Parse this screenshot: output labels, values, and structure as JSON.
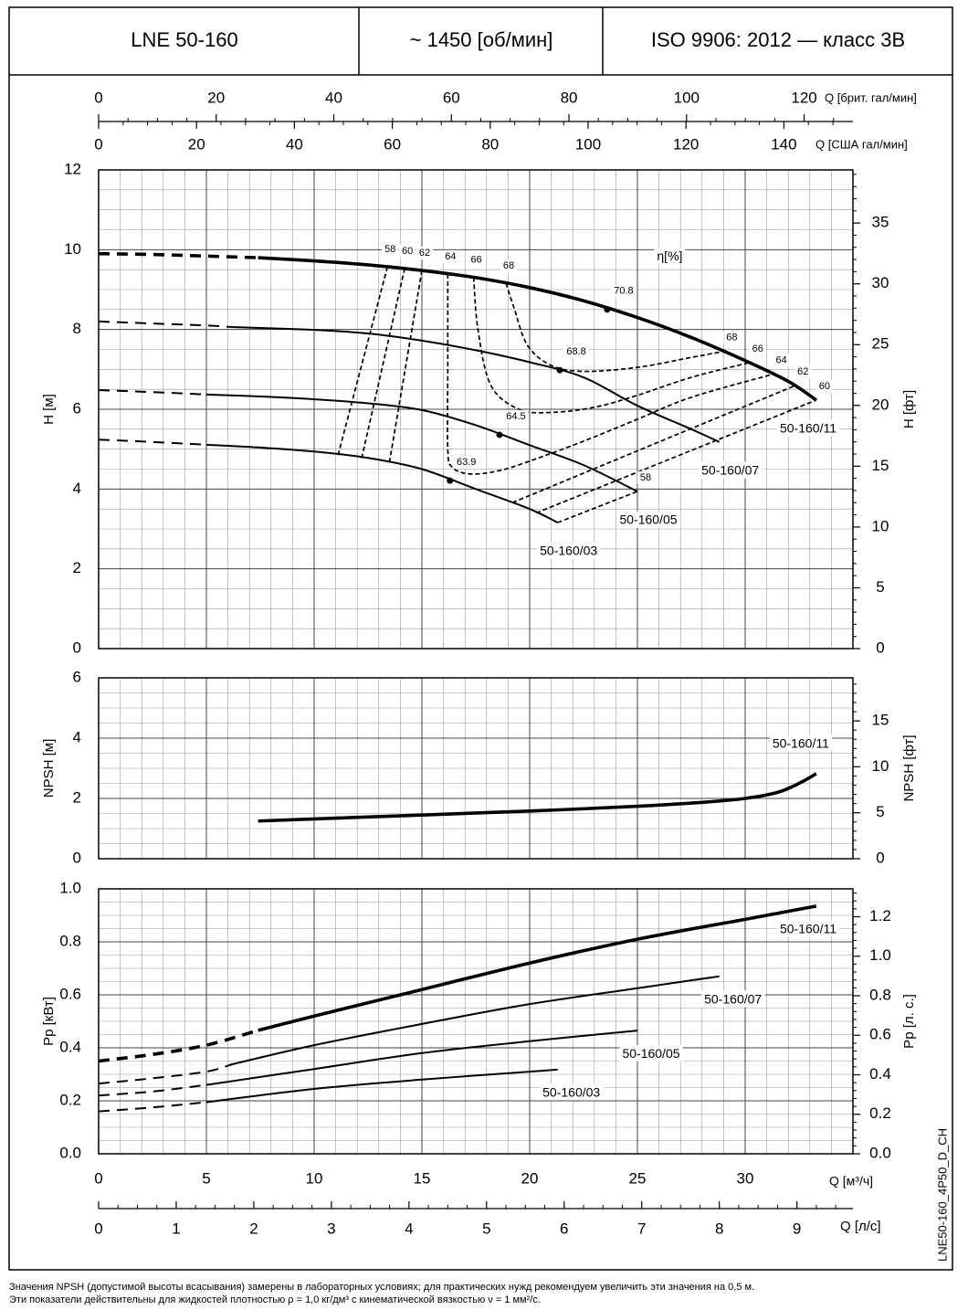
{
  "header": {
    "model": "LNE 50-160",
    "speed": "~ 1450 [об/мин]",
    "standard": "ISO 9906: 2012 — класс 3B"
  },
  "chart_data": [
    {
      "type": "line",
      "ylabel": "H [м]",
      "y2label": "H [фт]",
      "xlim": [
        0,
        35
      ],
      "xticks": [
        0,
        5,
        10,
        15,
        20,
        25,
        30
      ],
      "ylim": [
        0,
        12
      ],
      "yticks": [
        0,
        2,
        4,
        6,
        8,
        10,
        12
      ],
      "y2lim": [
        0,
        39.37
      ],
      "y2ticks": [
        0,
        5,
        10,
        15,
        20,
        25,
        30,
        35
      ],
      "grid": true,
      "x2axes": [
        {
          "label": "Q [брит. гал/мин]",
          "position": "top",
          "xlim": [
            0,
            128.3
          ],
          "xticks": [
            0,
            20,
            40,
            60,
            80,
            100,
            120
          ]
        },
        {
          "label": "Q [США гал/мин]",
          "position": "top",
          "xlim": [
            0,
            154.1
          ],
          "xticks": [
            0,
            20,
            40,
            60,
            80,
            100,
            120,
            140
          ]
        }
      ],
      "series": [
        {
          "name": "50-160/11",
          "color": "#000000",
          "emphasis": true,
          "dashed": {
            "x": [
              0,
              2.5,
              5,
              7.4
            ],
            "values": [
              9.9,
              9.88,
              9.84,
              9.8
            ]
          },
          "solid": {
            "x": [
              7.4,
              10,
              12.5,
              15,
              17.5,
              20,
              22.5,
              25,
              27.5,
              30,
              32,
              33.3
            ],
            "values": [
              9.8,
              9.72,
              9.62,
              9.48,
              9.3,
              9.05,
              8.72,
              8.3,
              7.8,
              7.22,
              6.7,
              6.23
            ]
          },
          "bep": {
            "x": 23.6,
            "value": 8.5,
            "eta": 70.8
          }
        },
        {
          "name": "50-160/07",
          "color": "#000000",
          "emphasis": false,
          "dashed": {
            "x": [
              0,
              2.5,
              5,
              6.2
            ],
            "values": [
              8.2,
              8.15,
              8.1,
              8.06
            ]
          },
          "solid": {
            "x": [
              6.2,
              10,
              12.5,
              15,
              17.5,
              20,
              22.5,
              25,
              27.5,
              28.8
            ],
            "values": [
              8.06,
              7.99,
              7.9,
              7.72,
              7.48,
              7.18,
              6.8,
              6.09,
              5.5,
              5.18
            ]
          },
          "bep": {
            "x": 21.4,
            "value": 6.98,
            "eta": 68.8
          }
        },
        {
          "name": "50-160/05",
          "color": "#000000",
          "emphasis": false,
          "dashed": {
            "x": [
              0,
              2.5,
              5
            ],
            "values": [
              6.48,
              6.43,
              6.37
            ]
          },
          "solid": {
            "x": [
              5,
              7.5,
              10,
              12.5,
              15,
              17.5,
              20,
              22.5,
              25
            ],
            "values": [
              6.37,
              6.32,
              6.25,
              6.15,
              5.98,
              5.6,
              5.1,
              4.6,
              3.94
            ]
          },
          "bep": {
            "x": 18.6,
            "value": 5.36,
            "eta": 64.5
          }
        },
        {
          "name": "50-160/03",
          "color": "#000000",
          "emphasis": false,
          "dashed": {
            "x": [
              0,
              2.5,
              5
            ],
            "values": [
              5.24,
              5.18,
              5.11
            ]
          },
          "solid": {
            "x": [
              5,
              7.5,
              10,
              12.5,
              15,
              17.5,
              20,
              21.3
            ],
            "values": [
              5.11,
              5.04,
              4.94,
              4.78,
              4.5,
              4.0,
              3.5,
              3.16
            ]
          },
          "bep": {
            "x": 16.3,
            "value": 4.21,
            "eta": 63.9
          }
        }
      ],
      "efficiency_label": "η[%]",
      "efficiency": [
        {
          "eta": 58,
          "x": [
            13.4,
            11.1,
            null,
            21.3,
            25
          ],
          "values": [
            9.57,
            4.83,
            null,
            3.16,
            3.94
          ]
        },
        {
          "eta": 60,
          "x": [
            14.2,
            12.2,
            null,
            20.3,
            33.3
          ],
          "values": [
            9.53,
            4.76,
            null,
            3.4,
            6.23
          ]
        },
        {
          "eta": 62,
          "x": [
            15.0,
            13.5,
            null,
            19.2,
            32.3
          ],
          "values": [
            9.48,
            4.69,
            null,
            3.66,
            6.59
          ]
        },
        {
          "eta": 64,
          "x": [
            16.2,
            16.2,
            16.2,
            16.4,
            17.2,
            18.5,
            20,
            22.5,
            25,
            27.5,
            31.3
          ],
          "values": [
            9.39,
            7.0,
            5.0,
            4.55,
            4.38,
            4.45,
            4.7,
            5.2,
            5.75,
            6.3,
            6.88
          ]
        },
        {
          "eta": 66,
          "x": [
            17.4,
            17.6,
            18.2,
            19.5,
            21,
            23,
            25,
            27.5,
            30.2
          ],
          "values": [
            9.31,
            8.0,
            6.6,
            6.0,
            5.92,
            6.05,
            6.35,
            6.8,
            7.17
          ]
        },
        {
          "eta": 68,
          "x": [
            18.9,
            19.3,
            19.9,
            21,
            22.5,
            25,
            27.5,
            29
          ],
          "values": [
            9.16,
            8.5,
            7.6,
            7.1,
            6.95,
            7.05,
            7.3,
            7.45
          ]
        }
      ]
    },
    {
      "type": "line",
      "ylabel": "NPSH [м]",
      "y2label": "NPSH [фт]",
      "xlim": [
        0,
        35
      ],
      "xticks": [
        0,
        5,
        10,
        15,
        20,
        25,
        30
      ],
      "ylim": [
        0,
        6
      ],
      "yticks": [
        0,
        2,
        4,
        6
      ],
      "y2lim": [
        0,
        19.685
      ],
      "y2ticks": [
        0,
        5,
        10,
        15
      ],
      "grid": true,
      "series": [
        {
          "name": "50-160/11",
          "color": "#000000",
          "emphasis": true,
          "solid": {
            "x": [
              7.4,
              10,
              15,
              20,
              25,
              28,
              30,
              31.5,
              32.5,
              33.3
            ],
            "values": [
              1.25,
              1.32,
              1.45,
              1.58,
              1.74,
              1.87,
              2.0,
              2.2,
              2.5,
              2.82
            ]
          }
        }
      ]
    },
    {
      "type": "line",
      "ylabel": "Pp [кВт]",
      "y2label": "Pp [л. с.]",
      "xlabel": "Q [м³/ч]",
      "xlim": [
        0,
        35
      ],
      "xticks": [
        0,
        5,
        10,
        15,
        20,
        25,
        30
      ],
      "ylim": [
        0,
        1
      ],
      "yticks": [
        {
          "value": 0,
          "label": "0.0"
        },
        0.2,
        0.4,
        0.6,
        0.8,
        {
          "value": 1,
          "label": "1.0"
        }
      ],
      "y2lim": [
        0,
        1.341
      ],
      "y2ticks": [
        {
          "value": 0,
          "label": "0.0"
        },
        0.2,
        0.4,
        0.6,
        0.8,
        {
          "value": 1,
          "label": "1.0"
        },
        1.2
      ],
      "grid": true,
      "x2axes": [
        {
          "label": "Q [л/с]",
          "position": "bottom",
          "xlim": [
            0,
            9.722
          ],
          "xticks": [
            0,
            1,
            2,
            3,
            4,
            5,
            6,
            7,
            8,
            9
          ]
        }
      ],
      "series": [
        {
          "name": "50-160/11",
          "color": "#000000",
          "emphasis": true,
          "dashed": {
            "x": [
              0,
              2.5,
              5,
              7.4
            ],
            "values": [
              0.35,
              0.375,
              0.41,
              0.466
            ]
          },
          "solid": {
            "x": [
              7.4,
              10,
              15,
              20,
              25,
              30,
              33.3
            ],
            "values": [
              0.466,
              0.52,
              0.62,
              0.72,
              0.81,
              0.885,
              0.935
            ]
          }
        },
        {
          "name": "50-160/07",
          "color": "#000000",
          "emphasis": false,
          "dashed": {
            "x": [
              0,
              2.5,
              5,
              6.2
            ],
            "values": [
              0.265,
              0.285,
              0.31,
              0.338
            ]
          },
          "solid": {
            "x": [
              6.2,
              10,
              15,
              20,
              25,
              28.8
            ],
            "values": [
              0.338,
              0.41,
              0.49,
              0.565,
              0.625,
              0.67
            ]
          }
        },
        {
          "name": "50-160/05",
          "color": "#000000",
          "emphasis": false,
          "dashed": {
            "x": [
              0,
              2.5,
              5
            ],
            "values": [
              0.22,
              0.235,
              0.26
            ]
          },
          "solid": {
            "x": [
              5,
              10,
              15,
              20,
              25
            ],
            "values": [
              0.26,
              0.32,
              0.38,
              0.425,
              0.465
            ]
          }
        },
        {
          "name": "50-160/03",
          "color": "#000000",
          "emphasis": false,
          "dashed": {
            "x": [
              0,
              2.5,
              5
            ],
            "values": [
              0.16,
              0.175,
              0.195
            ]
          },
          "solid": {
            "x": [
              5,
              10,
              15,
              20,
              21.3
            ],
            "values": [
              0.195,
              0.245,
              0.28,
              0.31,
              0.318
            ]
          }
        }
      ]
    }
  ],
  "footer": {
    "notes": [
      "Значения NPSH (допустимой высоты всасывания) замерены в лабораторных условиях; для практических нужд рекомендуем увеличить эти значения на 0,5 м.",
      "Эти показатели действительны для жидкостей плотностью ρ = 1,0 кг/дм³ с кинематической вязкостью ν = 1 мм²/с."
    ],
    "code": "LNE50-160_4P50_D_CH"
  }
}
